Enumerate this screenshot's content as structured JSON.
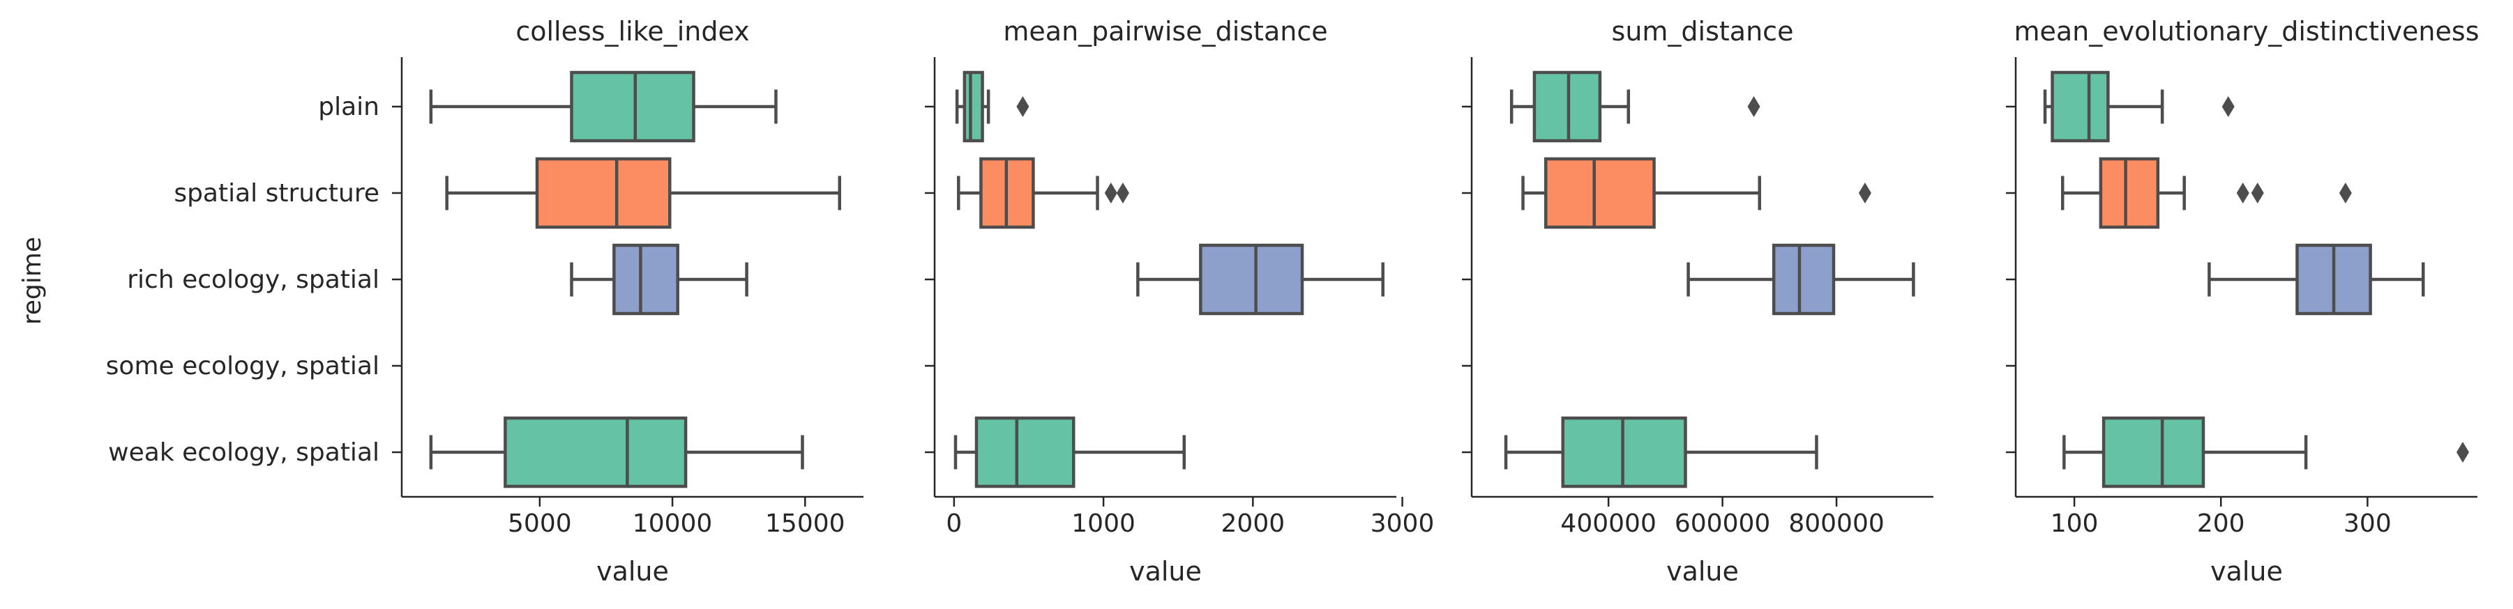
{
  "chart_data": {
    "type": "box",
    "ylabel": "regime",
    "categories": [
      "plain",
      "spatial structure",
      "rich ecology, spatial",
      "some ecology, spatial",
      "weak ecology, spatial"
    ],
    "colors": {
      "teal": "#66c2a5",
      "orange": "#fc8d62",
      "blue": "#8da0cb",
      "line": "#4d4d4d"
    },
    "panels": [
      {
        "title": "colless_like_index",
        "xlabel": "value",
        "xlim": [
          -200,
          17200
        ],
        "xticks": [
          5000,
          10000,
          15000
        ],
        "xtick_labels": [
          "5000",
          "10000",
          "15000"
        ],
        "boxes": [
          {
            "category": "plain",
            "color": "teal",
            "whislo": 900,
            "q1": 6200,
            "med": 8600,
            "q3": 10800,
            "whishi": 13900,
            "fliers": []
          },
          {
            "category": "spatial structure",
            "color": "orange",
            "whislo": 1500,
            "q1": 4900,
            "med": 7900,
            "q3": 9900,
            "whishi": 16300,
            "fliers": []
          },
          {
            "category": "rich ecology, spatial",
            "color": "blue",
            "whislo": 6200,
            "q1": 7800,
            "med": 8800,
            "q3": 10200,
            "whishi": 12800,
            "fliers": []
          },
          {
            "category": "weak ecology, spatial",
            "color": "teal",
            "whislo": 900,
            "q1": 3700,
            "med": 8300,
            "q3": 10500,
            "whishi": 14900,
            "fliers": []
          }
        ]
      },
      {
        "title": "mean_pairwise_distance",
        "xlabel": "value",
        "xlim": [
          -130,
          2960
        ],
        "xticks": [
          0,
          1000,
          2000,
          3000
        ],
        "xtick_labels": [
          "0",
          "1000",
          "2000",
          "3000"
        ],
        "boxes": [
          {
            "category": "plain",
            "color": "teal",
            "whislo": 20,
            "q1": 70,
            "med": 110,
            "q3": 190,
            "whishi": 230,
            "fliers": [
              460
            ]
          },
          {
            "category": "spatial structure",
            "color": "orange",
            "whislo": 30,
            "q1": 180,
            "med": 350,
            "q3": 530,
            "whishi": 960,
            "fliers": [
              1050,
              1130
            ]
          },
          {
            "category": "rich ecology, spatial",
            "color": "blue",
            "whislo": 1230,
            "q1": 1650,
            "med": 2020,
            "q3": 2330,
            "whishi": 2870,
            "fliers": []
          },
          {
            "category": "weak ecology, spatial",
            "color": "teal",
            "whislo": 10,
            "q1": 150,
            "med": 420,
            "q3": 800,
            "whishi": 1540,
            "fliers": []
          }
        ]
      },
      {
        "title": "sum_distance",
        "xlabel": "value",
        "xlim": [
          160000,
          970000
        ],
        "xticks": [
          400000,
          600000,
          800000
        ],
        "xtick_labels": [
          "400000",
          "600000",
          "800000"
        ],
        "boxes": [
          {
            "category": "plain",
            "color": "teal",
            "whislo": 230000,
            "q1": 270000,
            "med": 330000,
            "q3": 385000,
            "whishi": 435000,
            "fliers": [
              655000
            ]
          },
          {
            "category": "spatial structure",
            "color": "orange",
            "whislo": 250000,
            "q1": 290000,
            "med": 375000,
            "q3": 480000,
            "whishi": 665000,
            "fliers": [
              850000
            ]
          },
          {
            "category": "rich ecology, spatial",
            "color": "blue",
            "whislo": 540000,
            "q1": 690000,
            "med": 735000,
            "q3": 795000,
            "whishi": 935000,
            "fliers": []
          },
          {
            "category": "weak ecology, spatial",
            "color": "teal",
            "whislo": 220000,
            "q1": 320000,
            "med": 425000,
            "q3": 535000,
            "whishi": 765000,
            "fliers": []
          }
        ]
      },
      {
        "title": "mean_evolutionary_distinctiveness",
        "xlabel": "value",
        "xlim": [
          60,
          375
        ],
        "xticks": [
          100,
          200,
          300
        ],
        "xtick_labels": [
          "100",
          "200",
          "300"
        ],
        "boxes": [
          {
            "category": "plain",
            "color": "teal",
            "whislo": 80,
            "q1": 85,
            "med": 110,
            "q3": 123,
            "whishi": 160,
            "fliers": [
              205
            ]
          },
          {
            "category": "spatial structure",
            "color": "orange",
            "whislo": 92,
            "q1": 118,
            "med": 135,
            "q3": 157,
            "whishi": 175,
            "fliers": [
              215,
              225,
              285
            ]
          },
          {
            "category": "rich ecology, spatial",
            "color": "blue",
            "whislo": 192,
            "q1": 252,
            "med": 277,
            "q3": 302,
            "whishi": 338,
            "fliers": []
          },
          {
            "category": "weak ecology, spatial",
            "color": "teal",
            "whislo": 93,
            "q1": 120,
            "med": 160,
            "q3": 188,
            "whishi": 258,
            "fliers": [
              365
            ]
          }
        ]
      }
    ]
  }
}
